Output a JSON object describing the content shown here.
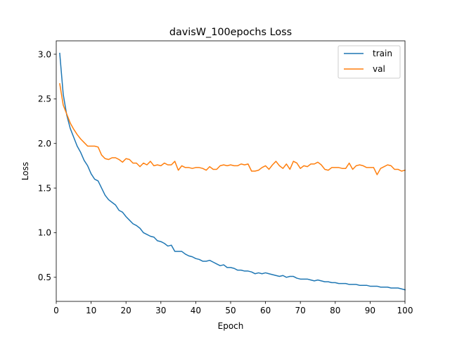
{
  "chart_data": {
    "type": "line",
    "title": "davisW_100epochs Loss",
    "xlabel": "Epoch",
    "ylabel": "Loss",
    "xlim": [
      0,
      100
    ],
    "ylim": [
      0.23,
      3.15
    ],
    "xticks": [
      0,
      10,
      20,
      30,
      40,
      50,
      60,
      70,
      80,
      90,
      100
    ],
    "yticks": [
      0.5,
      1.0,
      1.5,
      2.0,
      2.5,
      3.0
    ],
    "ytick_labels": [
      "0.5",
      "1.0",
      "1.5",
      "2.0",
      "2.5",
      "3.0"
    ],
    "grid": false,
    "legend_position": "top-right",
    "x": [
      1,
      2,
      3,
      4,
      5,
      6,
      7,
      8,
      9,
      10,
      11,
      12,
      13,
      14,
      15,
      16,
      17,
      18,
      19,
      20,
      21,
      22,
      23,
      24,
      25,
      26,
      27,
      28,
      29,
      30,
      31,
      32,
      33,
      34,
      35,
      36,
      37,
      38,
      39,
      40,
      41,
      42,
      43,
      44,
      45,
      46,
      47,
      48,
      49,
      50,
      51,
      52,
      53,
      54,
      55,
      56,
      57,
      58,
      59,
      60,
      61,
      62,
      63,
      64,
      65,
      66,
      67,
      68,
      69,
      70,
      71,
      72,
      73,
      74,
      75,
      76,
      77,
      78,
      79,
      80,
      81,
      82,
      83,
      84,
      85,
      86,
      87,
      88,
      89,
      90,
      91,
      92,
      93,
      94,
      95,
      96,
      97,
      98,
      99,
      100
    ],
    "series": [
      {
        "name": "train",
        "color": "#1f77b4",
        "values": [
          3.01,
          2.55,
          2.32,
          2.17,
          2.07,
          1.97,
          1.9,
          1.81,
          1.75,
          1.66,
          1.6,
          1.58,
          1.5,
          1.42,
          1.37,
          1.34,
          1.31,
          1.25,
          1.23,
          1.18,
          1.14,
          1.1,
          1.08,
          1.05,
          1.0,
          0.98,
          0.96,
          0.95,
          0.91,
          0.9,
          0.88,
          0.85,
          0.86,
          0.79,
          0.79,
          0.79,
          0.76,
          0.74,
          0.73,
          0.71,
          0.7,
          0.68,
          0.68,
          0.69,
          0.67,
          0.65,
          0.63,
          0.64,
          0.61,
          0.61,
          0.6,
          0.58,
          0.58,
          0.57,
          0.57,
          0.56,
          0.54,
          0.55,
          0.54,
          0.55,
          0.54,
          0.53,
          0.52,
          0.51,
          0.52,
          0.5,
          0.51,
          0.51,
          0.49,
          0.48,
          0.48,
          0.48,
          0.47,
          0.46,
          0.47,
          0.46,
          0.45,
          0.45,
          0.44,
          0.44,
          0.43,
          0.43,
          0.43,
          0.42,
          0.42,
          0.42,
          0.41,
          0.41,
          0.41,
          0.4,
          0.4,
          0.4,
          0.39,
          0.39,
          0.39,
          0.38,
          0.38,
          0.38,
          0.37,
          0.36
        ]
      },
      {
        "name": "val",
        "color": "#ff7f0e",
        "values": [
          2.67,
          2.43,
          2.33,
          2.23,
          2.16,
          2.1,
          2.05,
          2.01,
          1.97,
          1.97,
          1.97,
          1.96,
          1.87,
          1.83,
          1.82,
          1.84,
          1.84,
          1.82,
          1.79,
          1.83,
          1.82,
          1.78,
          1.78,
          1.74,
          1.78,
          1.76,
          1.8,
          1.75,
          1.76,
          1.75,
          1.78,
          1.76,
          1.76,
          1.8,
          1.7,
          1.75,
          1.73,
          1.73,
          1.72,
          1.73,
          1.73,
          1.72,
          1.7,
          1.74,
          1.71,
          1.71,
          1.75,
          1.76,
          1.75,
          1.76,
          1.75,
          1.75,
          1.77,
          1.76,
          1.77,
          1.69,
          1.69,
          1.7,
          1.73,
          1.75,
          1.71,
          1.76,
          1.8,
          1.75,
          1.72,
          1.77,
          1.71,
          1.8,
          1.78,
          1.72,
          1.75,
          1.74,
          1.77,
          1.77,
          1.79,
          1.76,
          1.71,
          1.7,
          1.73,
          1.73,
          1.73,
          1.72,
          1.72,
          1.78,
          1.71,
          1.75,
          1.76,
          1.75,
          1.73,
          1.73,
          1.73,
          1.65,
          1.72,
          1.74,
          1.76,
          1.75,
          1.71,
          1.71,
          1.69,
          1.7
        ]
      }
    ]
  }
}
